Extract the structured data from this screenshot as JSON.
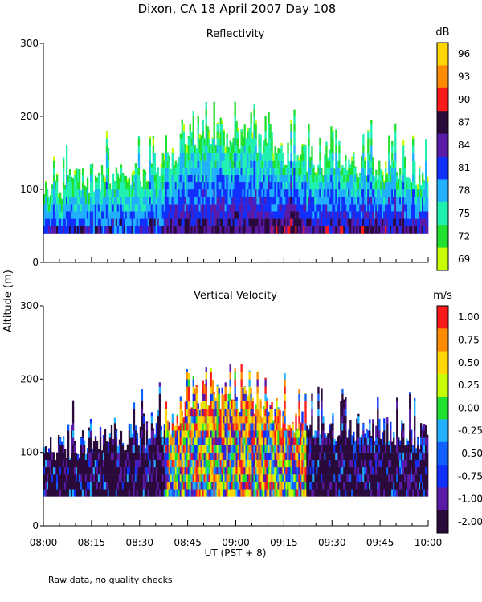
{
  "figure": {
    "title": "Dixon, CA 18 April 2007  Day 108",
    "ylabel": "Altitude (m)",
    "xlabel": "UT  (PST + 8)",
    "footnote": "Raw data, no quality checks"
  },
  "chart_data": [
    {
      "type": "heatmap",
      "title": "Reflectivity",
      "ylim": [
        0,
        300
      ],
      "yticks": [
        "0",
        "100",
        "200",
        "300"
      ],
      "xlim": [
        "08:00",
        "10:00"
      ],
      "xticks": [
        "08:00",
        "08:15",
        "08:30",
        "08:45",
        "09:00",
        "09:15",
        "09:30",
        "09:45",
        "10:00"
      ],
      "data_bottom_altitude": 40,
      "echo_top_profile": {
        "x": [
          "08:00",
          "08:15",
          "08:30",
          "08:40",
          "08:45",
          "08:52",
          "09:00",
          "09:10",
          "09:15",
          "09:22",
          "09:30",
          "09:45",
          "10:00"
        ],
        "altitude": [
          105,
          120,
          125,
          145,
          175,
          185,
          180,
          165,
          155,
          145,
          140,
          135,
          125
        ]
      },
      "colorbar": {
        "unit": "dB",
        "labels": [
          "96",
          "93",
          "90",
          "87",
          "84",
          "81",
          "78",
          "75",
          "72",
          "69"
        ],
        "colors": [
          "#ffd600",
          "#ff8c00",
          "#ff1a1a",
          "#2a0a3a",
          "#5a1aa8",
          "#1030ff",
          "#20b0ff",
          "#20f0b0",
          "#20e030",
          "#c8ff00"
        ]
      }
    },
    {
      "type": "heatmap",
      "title": "Vertical Velocity",
      "ylim": [
        0,
        300
      ],
      "yticks": [
        "0",
        "100",
        "200",
        "300"
      ],
      "xlim": [
        "08:00",
        "10:00"
      ],
      "xticks": [
        "08:00",
        "08:15",
        "08:30",
        "08:45",
        "09:00",
        "09:15",
        "09:30",
        "09:45",
        "10:00"
      ],
      "data_bottom_altitude": 40,
      "echo_top_profile": {
        "x": [
          "08:00",
          "08:15",
          "08:30",
          "08:40",
          "08:45",
          "08:52",
          "09:00",
          "09:10",
          "09:15",
          "09:22",
          "09:30",
          "09:45",
          "10:00"
        ],
        "altitude": [
          105,
          120,
          125,
          145,
          175,
          185,
          180,
          165,
          155,
          145,
          140,
          135,
          125
        ]
      },
      "colorbar": {
        "unit": "m/s",
        "labels": [
          "1.00",
          "0.75",
          "0.50",
          "0.25",
          "0.00",
          "-0.25",
          "-0.50",
          "-0.75",
          "-1.00",
          "-2.00"
        ],
        "colors": [
          "#ff1a1a",
          "#ff8c00",
          "#ffd600",
          "#c8ff00",
          "#20e030",
          "#20b0ff",
          "#1060ff",
          "#1030ff",
          "#5a1aa8",
          "#2a0a3a"
        ]
      }
    }
  ]
}
